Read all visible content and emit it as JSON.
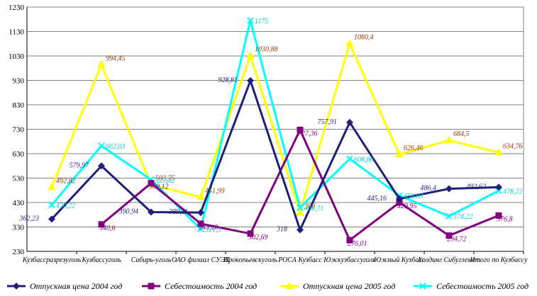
{
  "chart_data": {
    "type": "line",
    "title": "",
    "xlabel": "",
    "ylabel": "",
    "ylim": [
      230,
      1230
    ],
    "yticks": [
      230,
      330,
      430,
      530,
      630,
      730,
      830,
      930,
      1030,
      1130,
      1230
    ],
    "grid": true,
    "legend_position": "bottom",
    "categories": [
      "Кузбассразрезуголь",
      "Кузбассуголь",
      "Сибирь-уголь",
      "ОАО филиал СУЭК",
      "Прокопьевскуголь",
      "РОСА Кузбасс",
      "Южкузбассуголь",
      "Южный Кузбасс",
      "Холдинг Сибуглемет",
      "Итого по Кузбассу"
    ],
    "series": [
      {
        "name": "Отпускная цена 2004 год",
        "color": "#1f1f7a",
        "label_color": "#1f1f7a",
        "marker": "diamond",
        "values": [
          362.23,
          579.97,
          390.94,
          389.11,
          928.81,
          318,
          757.91,
          445.16,
          486.4,
          492.62
        ],
        "labels": [
          "362,23",
          "579,97",
          "390,94",
          "389,11",
          "928,81",
          "318",
          "757,91",
          "445,16",
          "486,4",
          "492,62"
        ]
      },
      {
        "name": "Себестоимость 2004 год",
        "color": "#800080",
        "label_color": "#800080",
        "marker": "square",
        "values": [
          null,
          340.6,
          509.12,
          343.18,
          302.69,
          727.36,
          276.01,
          429.95,
          294.72,
          376.8
        ],
        "labels": [
          "",
          "340,6",
          "509,12",
          "343,18",
          "302,69",
          "727,36",
          "276,01",
          "429,95",
          "294,72",
          "376,8"
        ]
      },
      {
        "name": "Отпускная цена 2005 год",
        "color": "#ffff00",
        "label_color": "#993300",
        "marker": "triangle",
        "values": [
          492.82,
          994.45,
          503.75,
          451.99,
          1030.88,
          388,
          1080.4,
          626.46,
          684.5,
          634.76
        ],
        "labels": [
          "492,82",
          "994,45",
          "503,75",
          "451,99",
          "1030,88",
          "388",
          "1080,4",
          "626,46",
          "684,5",
          "634,76"
        ]
      },
      {
        "name": "Себестоимость 2005 год",
        "color": "#00ffff",
        "label_color": "#00cccc",
        "marker": "x",
        "values": [
          420.22,
          662.03,
          523.42,
          321.3,
          1175,
          408.71,
          608.86,
          458.83,
          374.22,
          478.22
        ],
        "labels": [
          "420,22",
          "662,03",
          "523,42",
          "321,3",
          "1175",
          "408,71",
          "608,86",
          "458,83",
          "374,22",
          "478,22"
        ]
      }
    ]
  }
}
